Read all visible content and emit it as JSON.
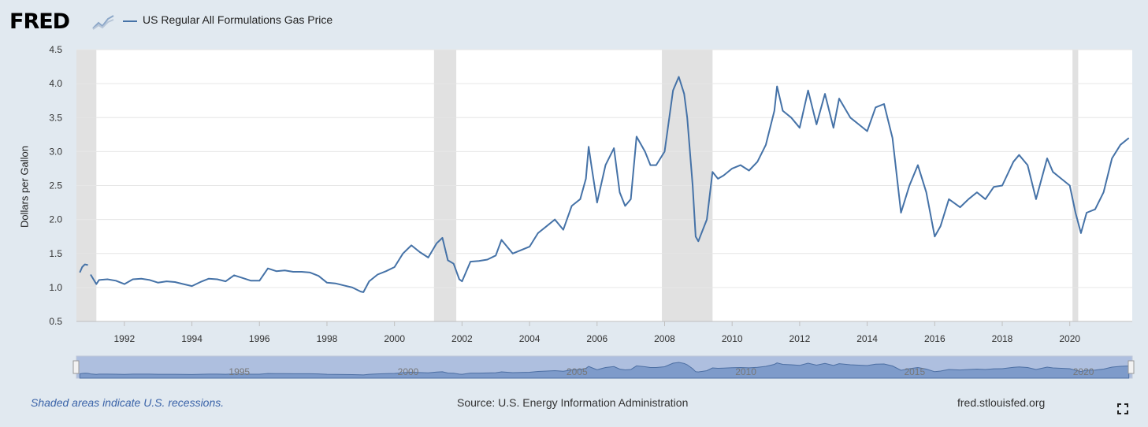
{
  "header": {
    "logo_text": "FRED",
    "series_label": "US Regular All Formulations Gas Price",
    "series_color": "#4572a7"
  },
  "footer": {
    "recession_note": "Shaded areas indicate U.S. recessions.",
    "source": "Source: U.S. Energy Information Administration",
    "site": "fred.stlouisfed.org"
  },
  "colors": {
    "background": "#e1e9f0",
    "plot_bg": "#ffffff",
    "recession": "#e1e1e1",
    "line": "#4572a7",
    "grid": "#e6e6e6",
    "navigator_bg": "#aebfdf",
    "navigator_fill": "#6d8fc3"
  },
  "chart_data": {
    "type": "line",
    "title": "",
    "xlabel": "",
    "ylabel": "Dollars per Gallon",
    "ylim": [
      0.5,
      4.5
    ],
    "y_ticks": [
      0.5,
      1.0,
      1.5,
      2.0,
      2.5,
      3.0,
      3.5,
      4.0,
      4.5
    ],
    "y_tick_labels": [
      "0.5",
      "1.0",
      "1.5",
      "2.0",
      "2.5",
      "3.0",
      "3.5",
      "4.0",
      "4.5"
    ],
    "x_ticks": [
      1992,
      1994,
      1996,
      1998,
      2000,
      2002,
      2004,
      2006,
      2008,
      2010,
      2012,
      2014,
      2016,
      2018,
      2020
    ],
    "x_tick_labels": [
      "1992",
      "1994",
      "1996",
      "1998",
      "2000",
      "2002",
      "2004",
      "2006",
      "2008",
      "2010",
      "2012",
      "2014",
      "2016",
      "2018",
      "2020"
    ],
    "grid": true,
    "legend": "top-left",
    "recessions": [
      [
        1990.58,
        1991.17
      ],
      [
        2001.17,
        2001.83
      ],
      [
        2007.92,
        2009.42
      ],
      [
        2020.08,
        2020.25
      ]
    ],
    "navigator_ticks": [
      "1995",
      "2000",
      "2005",
      "2010",
      "2015",
      "2020"
    ],
    "series": [
      {
        "name": "US Regular All Formulations Gas Price",
        "x": [
          1990.68,
          1990.75,
          1990.83,
          1990.92,
          1991.0,
          1991.17,
          1991.25,
          1991.5,
          1991.75,
          1992.0,
          1992.25,
          1992.5,
          1992.75,
          1993.0,
          1993.25,
          1993.5,
          1993.75,
          1994.0,
          1994.25,
          1994.5,
          1994.75,
          1995.0,
          1995.25,
          1995.5,
          1995.75,
          1996.0,
          1996.25,
          1996.5,
          1996.75,
          1997.0,
          1997.25,
          1997.5,
          1997.75,
          1998.0,
          1998.25,
          1998.5,
          1998.75,
          1999.0,
          1999.08,
          1999.25,
          1999.5,
          1999.75,
          2000.0,
          2000.25,
          2000.5,
          2000.75,
          2001.0,
          2001.25,
          2001.42,
          2001.58,
          2001.75,
          2001.92,
          2002.0,
          2002.25,
          2002.5,
          2002.75,
          2003.0,
          2003.17,
          2003.5,
          2003.75,
          2004.0,
          2004.25,
          2004.5,
          2004.75,
          2005.0,
          2005.25,
          2005.5,
          2005.67,
          2005.75,
          2005.83,
          2006.0,
          2006.25,
          2006.5,
          2006.67,
          2006.83,
          2007.0,
          2007.17,
          2007.42,
          2007.58,
          2007.75,
          2008.0,
          2008.25,
          2008.42,
          2008.58,
          2008.67,
          2008.83,
          2008.92,
          2009.0,
          2009.25,
          2009.42,
          2009.58,
          2009.75,
          2010.0,
          2010.25,
          2010.5,
          2010.75,
          2011.0,
          2011.25,
          2011.33,
          2011.5,
          2011.75,
          2012.0,
          2012.25,
          2012.5,
          2012.75,
          2013.0,
          2013.17,
          2013.5,
          2013.75,
          2014.0,
          2014.25,
          2014.5,
          2014.75,
          2015.0,
          2015.25,
          2015.5,
          2015.75,
          2016.0,
          2016.17,
          2016.42,
          2016.75,
          2017.0,
          2017.25,
          2017.5,
          2017.75,
          2018.0,
          2018.33,
          2018.5,
          2018.75,
          2019.0,
          2019.33,
          2019.5,
          2019.75,
          2020.0,
          2020.17,
          2020.33,
          2020.5,
          2020.75,
          2021.0,
          2021.25,
          2021.5,
          2021.75
        ],
        "y": [
          1.22,
          1.3,
          1.34,
          1.33,
          1.19,
          1.05,
          1.11,
          1.12,
          1.1,
          1.05,
          1.12,
          1.13,
          1.11,
          1.07,
          1.09,
          1.08,
          1.05,
          1.02,
          1.08,
          1.13,
          1.12,
          1.09,
          1.18,
          1.14,
          1.1,
          1.1,
          1.28,
          1.24,
          1.25,
          1.23,
          1.23,
          1.22,
          1.17,
          1.07,
          1.06,
          1.03,
          1.0,
          0.94,
          0.93,
          1.09,
          1.19,
          1.24,
          1.3,
          1.5,
          1.62,
          1.52,
          1.44,
          1.65,
          1.73,
          1.4,
          1.35,
          1.12,
          1.09,
          1.38,
          1.39,
          1.41,
          1.47,
          1.7,
          1.5,
          1.55,
          1.6,
          1.8,
          1.9,
          2.0,
          1.85,
          2.2,
          2.3,
          2.6,
          3.07,
          2.8,
          2.25,
          2.8,
          3.05,
          2.4,
          2.2,
          2.3,
          3.22,
          3.0,
          2.8,
          2.8,
          3.0,
          3.9,
          4.1,
          3.85,
          3.5,
          2.5,
          1.75,
          1.68,
          2.0,
          2.7,
          2.6,
          2.65,
          2.75,
          2.8,
          2.72,
          2.85,
          3.1,
          3.6,
          3.96,
          3.6,
          3.5,
          3.35,
          3.9,
          3.4,
          3.85,
          3.35,
          3.78,
          3.5,
          3.4,
          3.3,
          3.65,
          3.7,
          3.2,
          2.1,
          2.5,
          2.8,
          2.4,
          1.75,
          1.9,
          2.3,
          2.18,
          2.3,
          2.4,
          2.3,
          2.48,
          2.5,
          2.85,
          2.95,
          2.8,
          2.3,
          2.9,
          2.7,
          2.6,
          2.5,
          2.1,
          1.8,
          2.1,
          2.15,
          2.4,
          2.9,
          3.1,
          3.2
        ]
      }
    ]
  }
}
